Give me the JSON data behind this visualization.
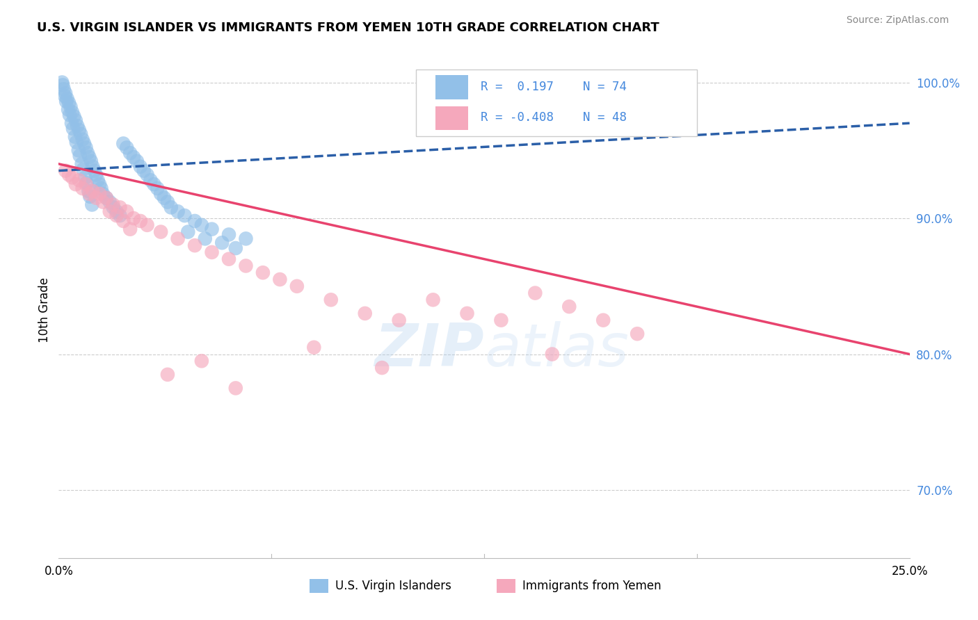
{
  "title": "U.S. VIRGIN ISLANDER VS IMMIGRANTS FROM YEMEN 10TH GRADE CORRELATION CHART",
  "source": "Source: ZipAtlas.com",
  "ylabel": "10th Grade",
  "legend_label1": "U.S. Virgin Islanders",
  "legend_label2": "Immigrants from Yemen",
  "R1": 0.197,
  "N1": 74,
  "R2": -0.408,
  "N2": 48,
  "blue_color": "#92C0E8",
  "pink_color": "#F5A8BC",
  "blue_line_color": "#2B5FA8",
  "pink_line_color": "#E8436E",
  "tick_color": "#4488DD",
  "blue_x": [
    0.1,
    0.15,
    0.2,
    0.25,
    0.3,
    0.35,
    0.4,
    0.45,
    0.5,
    0.55,
    0.6,
    0.65,
    0.7,
    0.75,
    0.8,
    0.85,
    0.9,
    0.95,
    1.0,
    1.05,
    1.1,
    1.15,
    1.2,
    1.25,
    1.3,
    1.4,
    1.5,
    1.6,
    1.7,
    1.8,
    1.9,
    2.0,
    2.1,
    2.2,
    2.3,
    2.4,
    2.5,
    2.6,
    2.7,
    2.8,
    2.9,
    3.0,
    3.1,
    3.2,
    3.3,
    3.5,
    3.7,
    4.0,
    4.2,
    4.5,
    5.0,
    5.5,
    0.12,
    0.18,
    0.22,
    0.28,
    0.32,
    0.38,
    0.42,
    0.48,
    0.52,
    0.58,
    0.62,
    0.68,
    0.72,
    0.78,
    0.82,
    0.88,
    0.92,
    0.98,
    4.8,
    5.2,
    3.8,
    4.3
  ],
  "blue_y": [
    100.0,
    99.5,
    99.2,
    98.8,
    98.5,
    98.2,
    97.8,
    97.5,
    97.2,
    96.8,
    96.5,
    96.2,
    95.8,
    95.5,
    95.2,
    94.8,
    94.5,
    94.2,
    93.8,
    93.5,
    93.2,
    92.8,
    92.5,
    92.2,
    91.8,
    91.5,
    91.2,
    90.8,
    90.5,
    90.2,
    95.5,
    95.2,
    94.8,
    94.5,
    94.2,
    93.8,
    93.5,
    93.2,
    92.8,
    92.5,
    92.2,
    91.8,
    91.5,
    91.2,
    90.8,
    90.5,
    90.2,
    89.8,
    89.5,
    89.2,
    88.8,
    88.5,
    99.8,
    99.0,
    98.6,
    98.0,
    97.6,
    97.0,
    96.6,
    96.0,
    95.6,
    95.0,
    94.6,
    94.0,
    93.6,
    93.0,
    92.6,
    92.0,
    91.6,
    91.0,
    88.2,
    87.8,
    89.0,
    88.5
  ],
  "pink_x": [
    0.2,
    0.4,
    0.6,
    0.8,
    1.0,
    1.2,
    1.4,
    1.6,
    1.8,
    2.0,
    2.2,
    2.4,
    2.6,
    3.0,
    3.5,
    4.0,
    4.5,
    5.0,
    5.5,
    6.0,
    6.5,
    7.0,
    8.0,
    9.0,
    10.0,
    11.0,
    12.0,
    13.0,
    14.0,
    15.0,
    16.0,
    17.0,
    0.3,
    0.5,
    0.7,
    0.9,
    1.1,
    1.3,
    1.5,
    1.7,
    1.9,
    2.1,
    3.2,
    4.2,
    5.2,
    7.5,
    9.5,
    14.5
  ],
  "pink_y": [
    93.5,
    93.0,
    92.8,
    92.5,
    92.0,
    91.8,
    91.5,
    91.0,
    90.8,
    90.5,
    90.0,
    89.8,
    89.5,
    89.0,
    88.5,
    88.0,
    87.5,
    87.0,
    86.5,
    86.0,
    85.5,
    85.0,
    84.0,
    83.0,
    82.5,
    84.0,
    83.0,
    82.5,
    84.5,
    83.5,
    82.5,
    81.5,
    93.2,
    92.5,
    92.2,
    91.8,
    91.5,
    91.2,
    90.5,
    90.2,
    89.8,
    89.2,
    78.5,
    79.5,
    77.5,
    80.5,
    79.0,
    80.0
  ],
  "xmin": 0.0,
  "xmax": 25.0,
  "ymin": 65.0,
  "ymax": 101.5,
  "blue_line_x0": 0.0,
  "blue_line_x1": 25.0,
  "blue_line_y0": 93.5,
  "blue_line_y1": 97.0,
  "pink_line_x0": 0.0,
  "pink_line_x1": 25.0,
  "pink_line_y0": 94.0,
  "pink_line_y1": 80.0
}
